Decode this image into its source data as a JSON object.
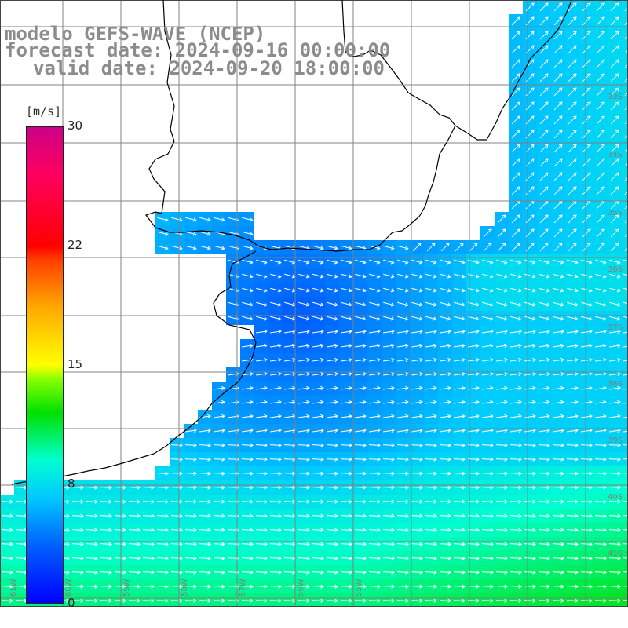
{
  "title": {
    "line1": "modelo GEFS-WAVE (NCEP)",
    "line2": "forecast date: 2024-09-16 00:00:00",
    "line3": "valid date: 2024-09-20 18:00:00"
  },
  "colorbar": {
    "unit": "[m/s]",
    "ticks": [
      "30",
      "22",
      "15",
      "8",
      "0"
    ],
    "tick_values": [
      30,
      22,
      15,
      8,
      0
    ],
    "min": 0,
    "max": 30
  },
  "grid": {
    "lat_labels": [
      "33S",
      "34S",
      "35S",
      "36S",
      "37S",
      "38S",
      "39S",
      "40S",
      "41S"
    ],
    "lon_labels": [
      "61W",
      "60W",
      "59W",
      "58W",
      "57W",
      "56W",
      "55W"
    ]
  },
  "colors": {
    "land": "#ffffff",
    "grid": "#808080",
    "coast": "#000000",
    "arrow": "#ffffff",
    "label": "#8c8c8c"
  },
  "legend": {
    "placement": "left"
  }
}
